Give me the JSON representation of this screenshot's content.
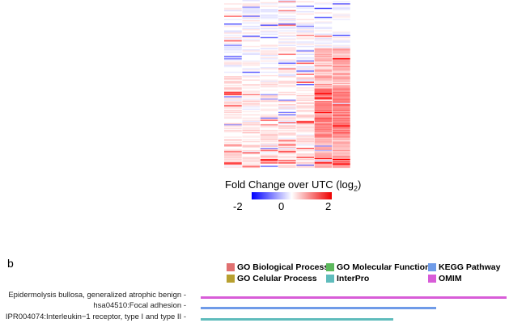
{
  "heatmap": {
    "columns": 7,
    "value_range": [
      -2,
      2
    ],
    "low_color": "#0000ff",
    "mid_color": "#ffffff",
    "high_color": "#ff0000"
  },
  "colorbar": {
    "title": "Fold Change over UTC (log",
    "title_sub": "2",
    "title_end": ")",
    "ticks": [
      "-2",
      "0",
      "2"
    ]
  },
  "panel_b": {
    "label": "b",
    "legend": [
      {
        "label": "GO Biological Process",
        "color": "#e07070"
      },
      {
        "label": "GO Molecular Function",
        "color": "#5cb85c"
      },
      {
        "label": "KEGG Pathway",
        "color": "#6f9be8"
      },
      {
        "label": "GO Celular Process",
        "color": "#b8a030"
      },
      {
        "label": "InterPro",
        "color": "#5fbcbc"
      },
      {
        "label": "OMIM",
        "color": "#d85cd8"
      }
    ]
  },
  "chart_data": {
    "type": "bar",
    "orientation": "horizontal",
    "categories": [
      "Epidermolysis bullosa, generalized atrophic benign",
      "hsa04510:Focal adhesion",
      "IPR004074:Interleukin−1 receptor, type I and type II"
    ],
    "values": [
      1.0,
      0.77,
      0.63
    ],
    "colors": [
      "#d85cd8",
      "#6f9be8",
      "#5fbcbc"
    ],
    "categories_type": [
      "OMIM",
      "KEGG Pathway",
      "InterPro"
    ]
  }
}
